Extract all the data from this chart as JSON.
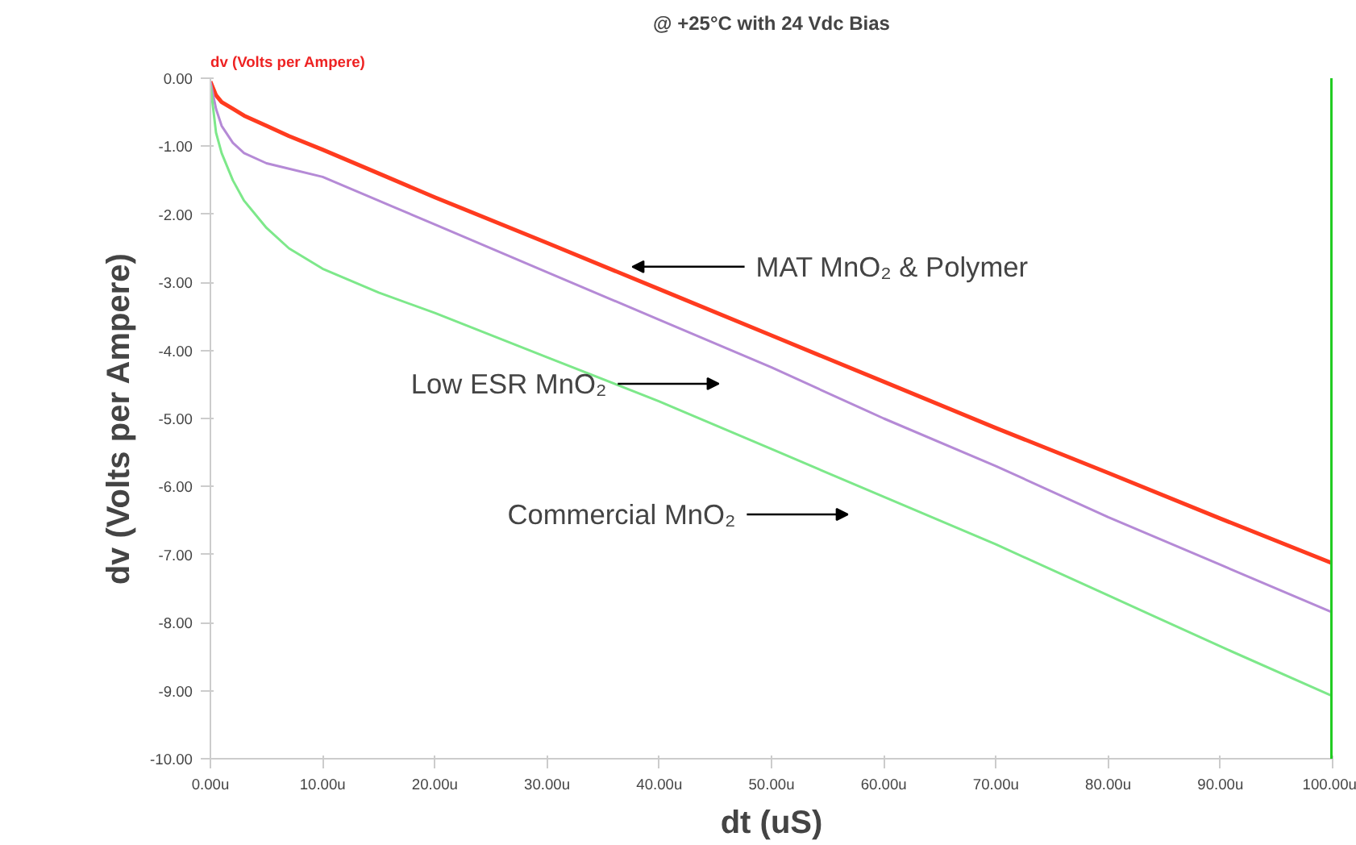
{
  "chart_data": {
    "type": "line",
    "title": "@ +25°C with 24 Vdc Bias",
    "xlabel": "dt (uS)",
    "ylabel": "dv (Volts per Ampere)",
    "x": [
      0,
      0.5,
      1,
      2,
      3,
      5,
      7,
      10,
      15,
      20,
      30,
      40,
      50,
      60,
      70,
      80,
      90,
      100
    ],
    "series": [
      {
        "color": "#ff3b1f",
        "values": [
          -0.05,
          -0.25,
          -0.35,
          -0.45,
          -0.55,
          -0.7,
          -0.85,
          -1.05,
          -1.4,
          -1.75,
          -2.42,
          -3.1,
          -3.78,
          -4.46,
          -5.14,
          -5.8,
          -6.47,
          -7.13
        ]
      },
      {
        "color": "#b58ad6",
        "values": [
          -0.05,
          -0.45,
          -0.7,
          -0.95,
          -1.1,
          -1.25,
          -1.33,
          -1.45,
          -1.8,
          -2.15,
          -2.85,
          -3.55,
          -4.25,
          -5.0,
          -5.7,
          -6.45,
          -7.15,
          -7.85
        ]
      },
      {
        "color": "#7de88a",
        "values": [
          -0.1,
          -0.8,
          -1.1,
          -1.5,
          -1.8,
          -2.2,
          -2.5,
          -2.8,
          -3.15,
          -3.45,
          -4.1,
          -4.75,
          -5.45,
          -6.15,
          -6.85,
          -7.6,
          -8.35,
          -9.08
        ]
      }
    ],
    "xlim": [
      0,
      100
    ],
    "ylim": [
      -10,
      0
    ],
    "xticks": [
      {
        "value": 0,
        "label": "0.00u"
      },
      {
        "value": 10,
        "label": "10.00u"
      },
      {
        "value": 20,
        "label": "20.00u"
      },
      {
        "value": 30,
        "label": "30.00u"
      },
      {
        "value": 40,
        "label": "40.00u"
      },
      {
        "value": 50,
        "label": "50.00u"
      },
      {
        "value": 60,
        "label": "60.00u"
      },
      {
        "value": 70,
        "label": "70.00u"
      },
      {
        "value": 80,
        "label": "80.00u"
      },
      {
        "value": 90,
        "label": "90.00u"
      },
      {
        "value": 100,
        "label": "100.00u"
      }
    ],
    "yticks": [
      {
        "value": 0,
        "label": "0.00"
      },
      {
        "value": -1,
        "label": "-1.00"
      },
      {
        "value": -2,
        "label": "-2.00"
      },
      {
        "value": -3,
        "label": "-3.00"
      },
      {
        "value": -4,
        "label": "-4.00"
      },
      {
        "value": -5,
        "label": "-5.00"
      },
      {
        "value": -6,
        "label": "-6.00"
      },
      {
        "value": -7,
        "label": "-7.00"
      },
      {
        "value": -8,
        "label": "-8.00"
      },
      {
        "value": -9,
        "label": "-9.00"
      },
      {
        "value": -10,
        "label": "-10.00"
      }
    ],
    "ref_lines": [
      {
        "axis": "x",
        "value": 100,
        "color": "#22cc22"
      }
    ],
    "annotations": [
      "dv (Volts per Ampere)",
      "MAT MnO₂ & Polymer",
      "Low ESR MnO₂",
      "Commercial MnO₂"
    ],
    "grid": false,
    "marker": "none",
    "line_style": "solid"
  }
}
